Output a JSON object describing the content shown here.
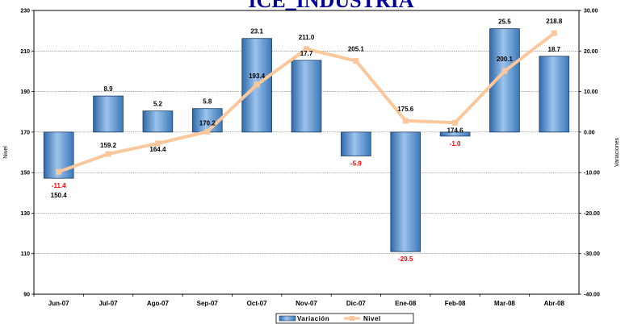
{
  "chart_data": {
    "type": "bar+line",
    "title": "ICE_INDUSTRIA",
    "categories": [
      "Jun-07",
      "Jul-07",
      "Ago-07",
      "Sep-07",
      "Oct-07",
      "Nov-07",
      "Dic-07",
      "Ene-08",
      "Feb-08",
      "Mar-08",
      "Abr-08"
    ],
    "series": [
      {
        "name": "Variación",
        "type": "bar",
        "axis": "right",
        "values": [
          -11.4,
          8.9,
          5.2,
          5.8,
          23.1,
          17.7,
          -5.9,
          -29.5,
          -1.0,
          25.5,
          18.7
        ],
        "labels": [
          "-11.4",
          "8.9",
          "5.2",
          "5.8",
          "23.1",
          "17.7",
          "-5.9",
          "-29.5",
          "-1.0",
          "25.5",
          "18.7"
        ]
      },
      {
        "name": "Nivel",
        "type": "line",
        "axis": "left",
        "values": [
          150.4,
          159.2,
          164.4,
          170.2,
          193.4,
          211.0,
          205.1,
          175.6,
          174.6,
          200.1,
          218.8
        ],
        "labels": [
          "150.4",
          "159.2",
          "164.4",
          "170.2",
          "193.4",
          "211.0",
          "205.1",
          "175.6",
          "174.6",
          "200.1",
          "218.8"
        ]
      }
    ],
    "y_left": {
      "label": "Nivel",
      "ylim": [
        90,
        230
      ],
      "ticks": [
        "90",
        "110",
        "130",
        "150",
        "170",
        "190",
        "210",
        "230"
      ]
    },
    "y_right": {
      "label": "Variaciones",
      "ylim": [
        -40,
        30
      ],
      "ticks": [
        "-40.00",
        "-30.00",
        "-20.00",
        "-10.00",
        "0.00",
        "10.00",
        "20.00",
        "30.00"
      ]
    },
    "grid": true,
    "legend": "bottom-center",
    "colors": {
      "bar_fill": "#5b9bd5",
      "bar_edge": "#1f3c64",
      "line": "#fbc79b",
      "negative_label": "#ff0000",
      "positive_label": "#000000",
      "title": "#000099"
    }
  }
}
